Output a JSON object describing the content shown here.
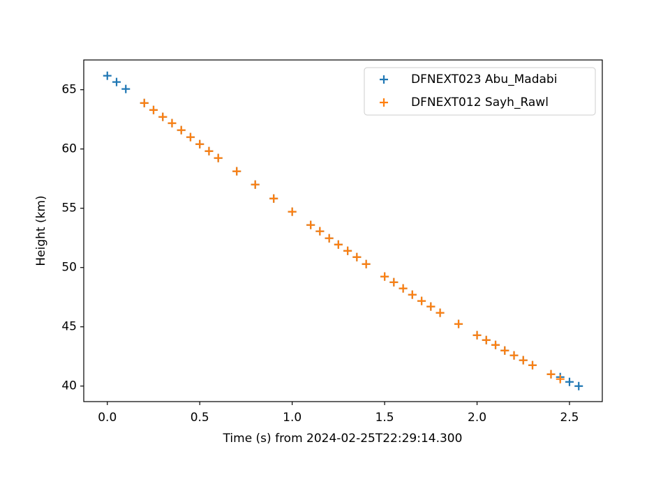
{
  "chart_data": {
    "type": "scatter",
    "xlabel": "Time (s) from 2024-02-25T22:29:14.300",
    "ylabel": "Height (km)",
    "xlim": [
      -0.1275,
      2.6775
    ],
    "ylim": [
      38.69,
      67.51
    ],
    "xticks": [
      {
        "value": 0,
        "label": "0.0"
      },
      0.5,
      {
        "value": 1,
        "label": "1.0"
      },
      1.5,
      {
        "value": 2,
        "label": "2.0"
      },
      2.5
    ],
    "yticks": [
      40,
      45,
      50,
      55,
      60,
      65
    ],
    "legend": "upper right",
    "marker": "+",
    "series": [
      {
        "name": "DFNEXT023 Abu_Madabi",
        "color": "#1f77b4",
        "x": [
          0,
          0.05,
          0.1,
          0.2,
          0.25,
          0.3,
          0.35,
          0.4,
          0.45,
          0.5,
          0.55,
          0.6,
          0.7,
          0.8,
          0.9,
          1.0,
          1.1,
          1.15,
          1.2,
          1.25,
          1.3,
          1.35,
          1.4,
          1.5,
          1.55,
          1.6,
          1.65,
          1.7,
          1.75,
          1.8,
          1.9,
          2.0,
          2.05,
          2.1,
          2.15,
          2.2,
          2.25,
          2.3,
          2.4,
          2.45,
          2.5,
          2.55
        ],
        "values": [
          66.18,
          65.65,
          65.06,
          63.88,
          63.29,
          62.71,
          62.18,
          61.59,
          61.0,
          60.41,
          59.82,
          59.24,
          58.12,
          57.0,
          55.82,
          54.71,
          53.59,
          53.06,
          52.47,
          51.94,
          51.41,
          50.88,
          50.29,
          49.24,
          48.76,
          48.24,
          47.71,
          47.18,
          46.71,
          46.18,
          45.24,
          44.29,
          43.88,
          43.47,
          43.0,
          42.59,
          42.18,
          41.76,
          41.0,
          40.76,
          40.35,
          40.0
        ]
      },
      {
        "name": "DFNEXT012 Sayh_Rawl",
        "color": "#ff7f0e",
        "x": [
          0.2,
          0.25,
          0.3,
          0.35,
          0.4,
          0.45,
          0.5,
          0.55,
          0.6,
          0.7,
          0.8,
          0.9,
          1.0,
          1.1,
          1.15,
          1.2,
          1.25,
          1.3,
          1.35,
          1.4,
          1.5,
          1.55,
          1.6,
          1.65,
          1.7,
          1.75,
          1.8,
          1.9,
          2.0,
          2.05,
          2.1,
          2.15,
          2.2,
          2.25,
          2.3,
          2.4,
          2.45
        ],
        "values": [
          63.88,
          63.29,
          62.71,
          62.18,
          61.59,
          61.0,
          60.41,
          59.82,
          59.24,
          58.12,
          57.0,
          55.82,
          54.71,
          53.59,
          53.06,
          52.47,
          51.94,
          51.41,
          50.88,
          50.29,
          49.24,
          48.76,
          48.24,
          47.71,
          47.18,
          46.71,
          46.18,
          45.24,
          44.29,
          43.88,
          43.47,
          43.0,
          42.59,
          42.18,
          41.76,
          41.0,
          40.59
        ]
      }
    ]
  }
}
